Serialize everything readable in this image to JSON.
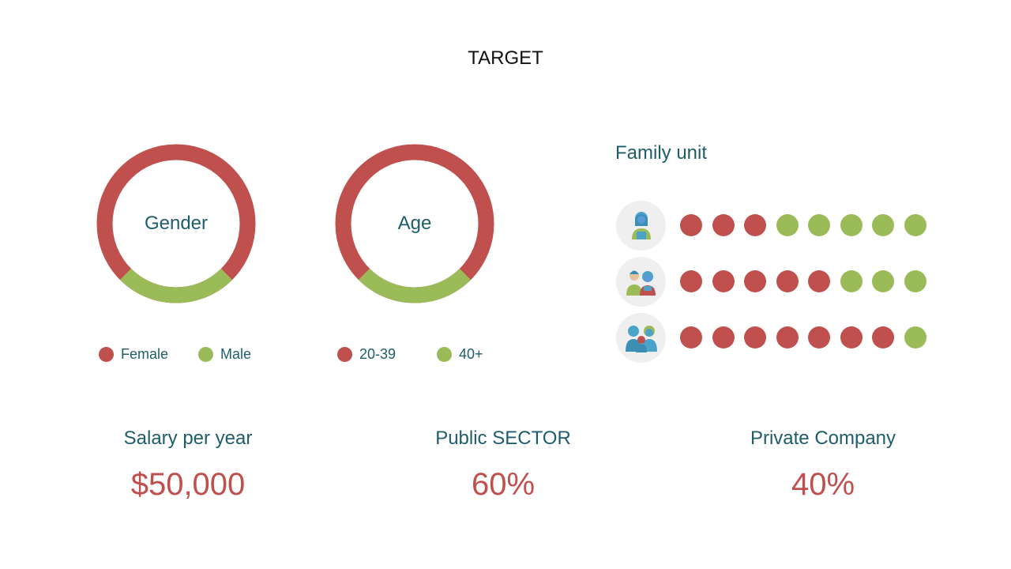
{
  "title": "TARGET",
  "colors": {
    "red": "#c0504d",
    "green": "#9bbb59",
    "teal": "#1f5d6b",
    "avatar_bg": "#efefef"
  },
  "gender": {
    "label": "Gender",
    "legend": [
      {
        "label": "Female",
        "color": "#c0504d"
      },
      {
        "label": "Male",
        "color": "#9bbb59"
      }
    ],
    "shares": {
      "female": 0.75,
      "male": 0.25
    }
  },
  "age": {
    "label": "Age",
    "legend": [
      {
        "label": "20-39",
        "color": "#c0504d"
      },
      {
        "label": "40+",
        "color": "#9bbb59"
      }
    ],
    "shares": {
      "20-39": 0.75,
      "40+": 0.25
    }
  },
  "family": {
    "title": "Family unit",
    "rows": [
      {
        "icon": "single-person-icon",
        "red": 3,
        "green": 5
      },
      {
        "icon": "couple-icon",
        "red": 5,
        "green": 3
      },
      {
        "icon": "family-with-child-icon",
        "red": 7,
        "green": 1
      }
    ]
  },
  "stats": [
    {
      "label": "Salary per year",
      "value": "$50,000"
    },
    {
      "label": "Public SECTOR",
      "value": "60%"
    },
    {
      "label": "Private Company",
      "value": "40%"
    }
  ]
}
